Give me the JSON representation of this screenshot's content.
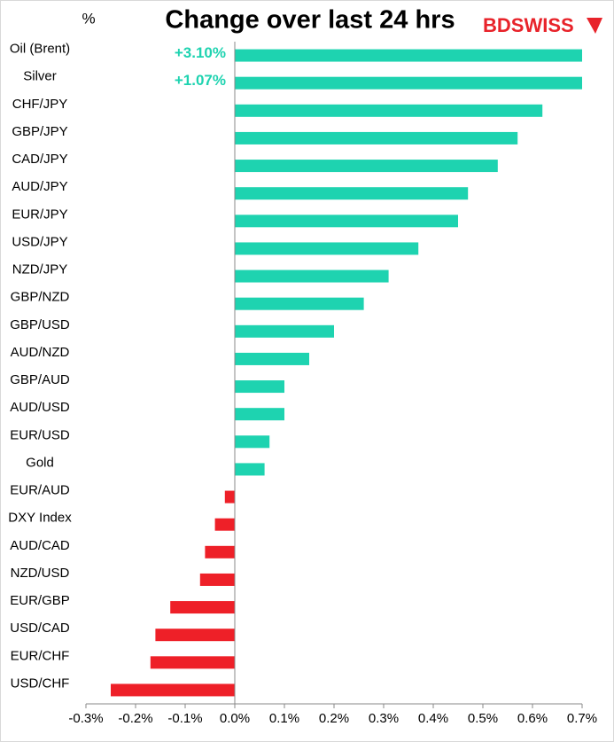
{
  "chart_data": {
    "type": "hbar",
    "title": "Change over last 24 hrs",
    "unit_label": "%",
    "logo": "BDSWISS",
    "categories": [
      "Oil (Brent)",
      "Silver",
      "CHF/JPY",
      "GBP/JPY",
      "CAD/JPY",
      "AUD/JPY",
      "EUR/JPY",
      "USD/JPY",
      "NZD/JPY",
      "GBP/NZD",
      "GBP/USD",
      "AUD/NZD",
      "GBP/AUD",
      "AUD/USD",
      "EUR/USD",
      "Gold",
      "EUR/AUD",
      "DXY Index",
      "AUD/CAD",
      "NZD/USD",
      "EUR/GBP",
      "USD/CAD",
      "EUR/CHF",
      "USD/CHF"
    ],
    "values": [
      3.1,
      1.07,
      0.62,
      0.57,
      0.53,
      0.47,
      0.45,
      0.37,
      0.31,
      0.26,
      0.2,
      0.15,
      0.1,
      0.1,
      0.07,
      0.06,
      -0.02,
      -0.04,
      -0.06,
      -0.07,
      -0.13,
      -0.16,
      -0.17,
      -0.25
    ],
    "value_labels": [
      "+3.10%",
      "+1.07%",
      null,
      null,
      null,
      null,
      null,
      null,
      null,
      null,
      null,
      null,
      null,
      null,
      null,
      null,
      null,
      null,
      null,
      null,
      null,
      null,
      null,
      null
    ],
    "color": "#1ed3b0",
    "negative_color": "#ee2028",
    "xlim": [
      -0.3,
      0.7
    ],
    "xticks": [
      {
        "value": -0.3,
        "label": "-0.3%"
      },
      {
        "value": -0.2,
        "label": "-0.2%"
      },
      {
        "value": -0.1,
        "label": "-0.1%"
      },
      {
        "value": 0,
        "label": "0.0%"
      },
      {
        "value": 0.1,
        "label": "0.1%"
      },
      {
        "value": 0.2,
        "label": "0.2%"
      },
      {
        "value": 0.3,
        "label": "0.3%"
      },
      {
        "value": 0.4,
        "label": "0.4%"
      },
      {
        "value": 0.5,
        "label": "0.5%"
      },
      {
        "value": 0.6,
        "label": "0.6%"
      },
      {
        "value": 0.7,
        "label": "0.7%"
      }
    ]
  }
}
